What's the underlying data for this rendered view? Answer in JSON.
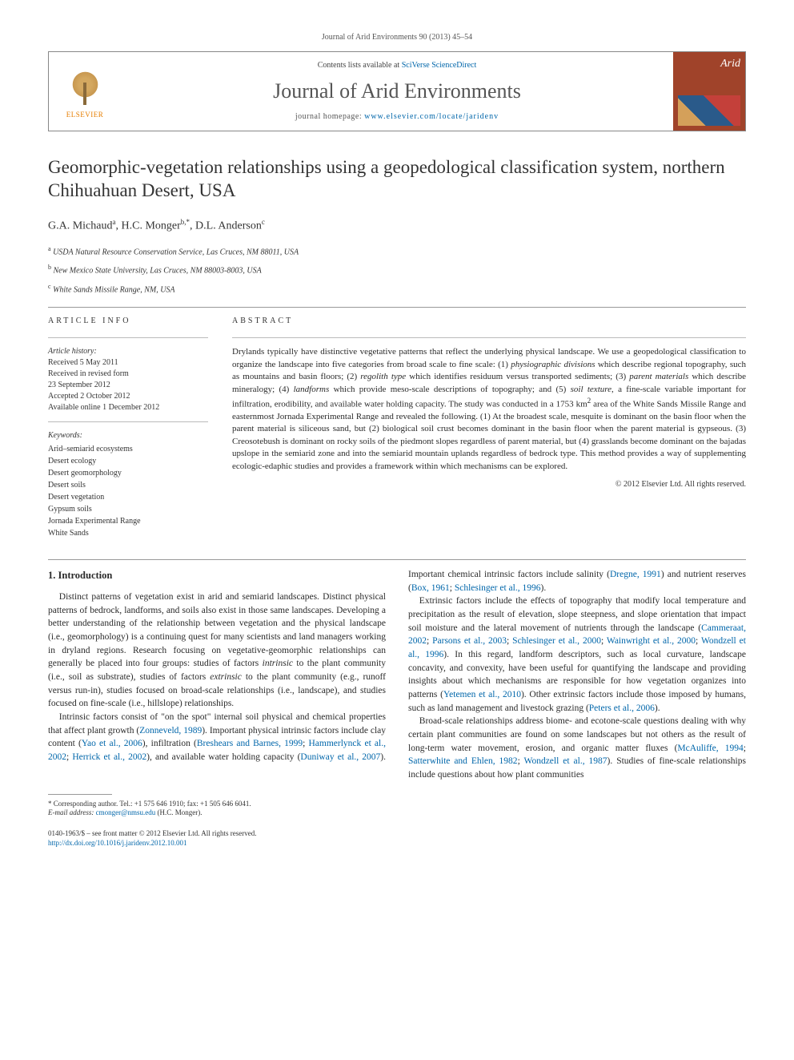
{
  "journal_ref": "Journal of Arid Environments 90 (2013) 45–54",
  "header": {
    "contents_prefix": "Contents lists available at ",
    "contents_link": "SciVerse ScienceDirect",
    "journal_name": "Journal of Arid Environments",
    "homepage_prefix": "journal homepage: ",
    "homepage_url": "www.elsevier.com/locate/jaridenv",
    "publisher": "ELSEVIER",
    "cover_text": "Arid"
  },
  "title": "Geomorphic-vegetation relationships using a geopedological classification system, northern Chihuahuan Desert, USA",
  "authors_html": "G.A. Michaud<sup>a</sup>, H.C. Monger<sup>b,*</sup>, D.L. Anderson<sup>c</sup>",
  "affiliations": [
    {
      "sup": "a",
      "text": "USDA Natural Resource Conservation Service, Las Cruces, NM 88011, USA"
    },
    {
      "sup": "b",
      "text": "New Mexico State University, Las Cruces, NM 88003-8003, USA"
    },
    {
      "sup": "c",
      "text": "White Sands Missile Range, NM, USA"
    }
  ],
  "info_head": "ARTICLE INFO",
  "history": {
    "label": "Article history:",
    "lines": [
      "Received 5 May 2011",
      "Received in revised form",
      "23 September 2012",
      "Accepted 2 October 2012",
      "Available online 1 December 2012"
    ]
  },
  "keywords_label": "Keywords:",
  "keywords": [
    "Arid–semiarid ecosystems",
    "Desert ecology",
    "Desert geomorphology",
    "Desert soils",
    "Desert vegetation",
    "Gypsum soils",
    "Jornada Experimental Range",
    "White Sands"
  ],
  "abstract_head": "ABSTRACT",
  "abstract_text": "Drylands typically have distinctive vegetative patterns that reflect the underlying physical landscape. We use a geopedological classification to organize the landscape into five categories from broad scale to fine scale: (1) <i>physiographic divisions</i> which describe regional topography, such as mountains and basin floors; (2) <i>regolith type</i> which identifies residuum versus transported sediments; (3) <i>parent materials</i> which describe mineralogy; (4) <i>landforms</i> which provide meso-scale descriptions of topography; and (5) <i>soil texture</i>, a fine-scale variable important for infiltration, erodibility, and available water holding capacity. The study was conducted in a 1753 km<sup>2</sup> area of the White Sands Missile Range and easternmost Jornada Experimental Range and revealed the following. (1) At the broadest scale, mesquite is dominant on the basin floor when the parent material is siliceous sand, but (2) biological soil crust becomes dominant in the basin floor when the parent material is gypseous. (3) Creosotebush is dominant on rocky soils of the piedmont slopes regardless of parent material, but (4) grasslands become dominant on the bajadas upslope in the semiarid zone and into the semiarid mountain uplands regardless of bedrock type. This method provides a way of supplementing ecologic-edaphic studies and provides a framework within which mechanisms can be explored.",
  "copyright": "© 2012 Elsevier Ltd. All rights reserved.",
  "section1_head": "1. Introduction",
  "para1": "Distinct patterns of vegetation exist in arid and semiarid landscapes. Distinct physical patterns of bedrock, landforms, and soils also exist in those same landscapes. Developing a better understanding of the relationship between vegetation and the physical landscape (i.e., geomorphology) is a continuing quest for many scientists and land managers working in dryland regions. Research focusing on vegetative-geomorphic relationships can generally be placed into four groups: studies of factors <i>intrinsic</i> to the plant community (i.e., soil as substrate), studies of factors <i>extrinsic</i> to the plant community (e.g., runoff versus run-in), studies focused on broad-scale relationships (i.e., landscape), and studies focused on fine-scale (i.e., hillslope) relationships.",
  "para2a": "Intrinsic factors consist of \"on the spot\" internal soil physical and chemical properties that affect plant growth (",
  "cite_zonneveld": "Zonneveld, 1989",
  "para2b": "). Important physical intrinsic factors include clay content (",
  "cite_yao": "Yao et al., 2006",
  "para2c": "), infiltration (",
  "cite_breshears": "Breshears and Barnes, 1999",
  "cite_hammer": "Hammerlynck et al., 2002",
  "cite_herrick": "Herrick et al., 2002",
  "para2d": "), and available water holding capacity (",
  "cite_duniway": "Duniway et al., 2007",
  "para2e": "). Important chemical intrinsic factors include salinity (",
  "cite_dregne": "Dregne, 1991",
  "para2f": ") and nutrient reserves (",
  "cite_box": "Box, 1961",
  "cite_schles": "Schlesinger et al., 1996",
  "para2g": ").",
  "para3a": "Extrinsic factors include the effects of topography that modify local temperature and precipitation as the result of elevation, slope steepness, and slope orientation that impact soil moisture and the lateral movement of nutrients through the landscape (",
  "cite_cammeraat": "Cammeraat, 2002",
  "cite_parsons": "Parsons et al., 2003",
  "cite_schles2": "Schlesinger et al., 2000",
  "cite_wainwright": "Wainwright et al., 2000",
  "cite_wondzell96": "Wondzell et al., 1996",
  "para3b": "). In this regard, landform descriptors, such as local curvature, landscape concavity, and convexity, have been useful for quantifying the landscape and providing insights about which mechanisms are responsible for how vegetation organizes into patterns (",
  "cite_yetemen": "Yetemen et al., 2010",
  "para3c": "). Other extrinsic factors include those imposed by humans, such as land management and livestock grazing (",
  "cite_peters": "Peters et al., 2006",
  "para3d": ").",
  "para4a": "Broad-scale relationships address biome- and ecotone-scale questions dealing with why certain plant communities are found on some landscapes but not others as the result of long-term water movement, erosion, and organic matter fluxes (",
  "cite_mcauliffe": "McAuliffe, 1994",
  "cite_satterwhite": "Satterwhite and Ehlen, 1982",
  "cite_wondzell87": "Wondzell et al., 1987",
  "para4b": "). Studies of fine-scale relationships include questions about how plant communities",
  "footnote_corresp": "* Corresponding author. Tel.: +1 575 646 1910; fax: +1 505 646 6041.",
  "footnote_email_label": "E-mail address: ",
  "footnote_email": "cmonger@nmsu.edu",
  "footnote_email_who": " (H.C. Monger).",
  "footer_line1": "0140-1963/$ – see front matter © 2012 Elsevier Ltd. All rights reserved.",
  "footer_doi": "http://dx.doi.org/10.1016/j.jaridenv.2012.10.001"
}
